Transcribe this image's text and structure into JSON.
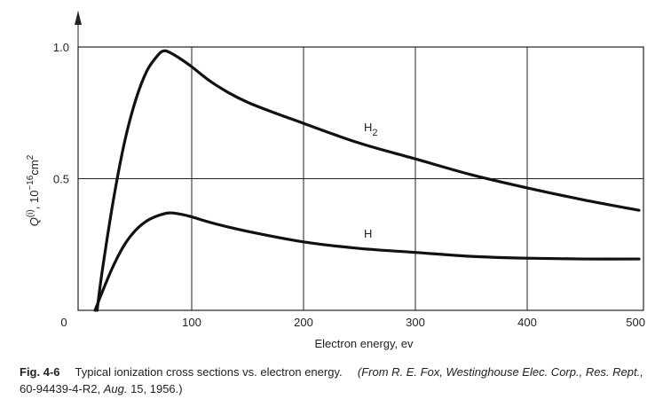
{
  "chart_data": {
    "type": "line",
    "xlabel": "Electron energy, ev",
    "ylabel_main": "Q",
    "ylabel_sup": "(i)",
    "ylabel_unit": ", 10",
    "ylabel_exp": "−16",
    "ylabel_unit2": "cm",
    "ylabel_unit_sup": "2",
    "xlim": [
      0,
      500
    ],
    "ylim": [
      0,
      1.02
    ],
    "x_ticks": [
      "0",
      "100",
      "200",
      "300",
      "400",
      "500"
    ],
    "x_tick_values": [
      0,
      100,
      200,
      300,
      400,
      500
    ],
    "y_ticks": [
      "0.5",
      "1.0"
    ],
    "y_tick_values": [
      0.5,
      1.0
    ],
    "grid": true,
    "series": [
      {
        "name": "H",
        "name_sub": "2",
        "x": [
          15.4,
          20,
          30,
          40,
          50,
          60,
          70,
          75,
          80,
          90,
          100,
          120,
          150,
          200,
          250,
          300,
          350,
          400,
          450,
          500
        ],
        "y": [
          0,
          0.15,
          0.42,
          0.64,
          0.8,
          0.91,
          0.97,
          0.985,
          0.98,
          0.955,
          0.925,
          0.86,
          0.79,
          0.71,
          0.635,
          0.575,
          0.515,
          0.465,
          0.42,
          0.38
        ]
      },
      {
        "name": "H",
        "name_sub": "",
        "x": [
          13.6,
          20,
          30,
          40,
          50,
          60,
          70,
          80,
          90,
          100,
          120,
          150,
          200,
          250,
          300,
          350,
          400,
          450,
          500
        ],
        "y": [
          0,
          0.07,
          0.17,
          0.25,
          0.305,
          0.34,
          0.36,
          0.37,
          0.365,
          0.355,
          0.33,
          0.3,
          0.26,
          0.235,
          0.22,
          0.205,
          0.198,
          0.195,
          0.195
        ]
      }
    ]
  },
  "caption": {
    "fig_num": "Fig. 4-6",
    "text": "Typical ionization cross sections vs. electron energy.",
    "source_pre": "(From R. E. Fox, Westinghouse Elec. Corp., Res. Rept.,",
    "source_num": "60-94439-4-R2,",
    "source_date_label": "Aug.",
    "source_date": "15, 1956.)"
  }
}
